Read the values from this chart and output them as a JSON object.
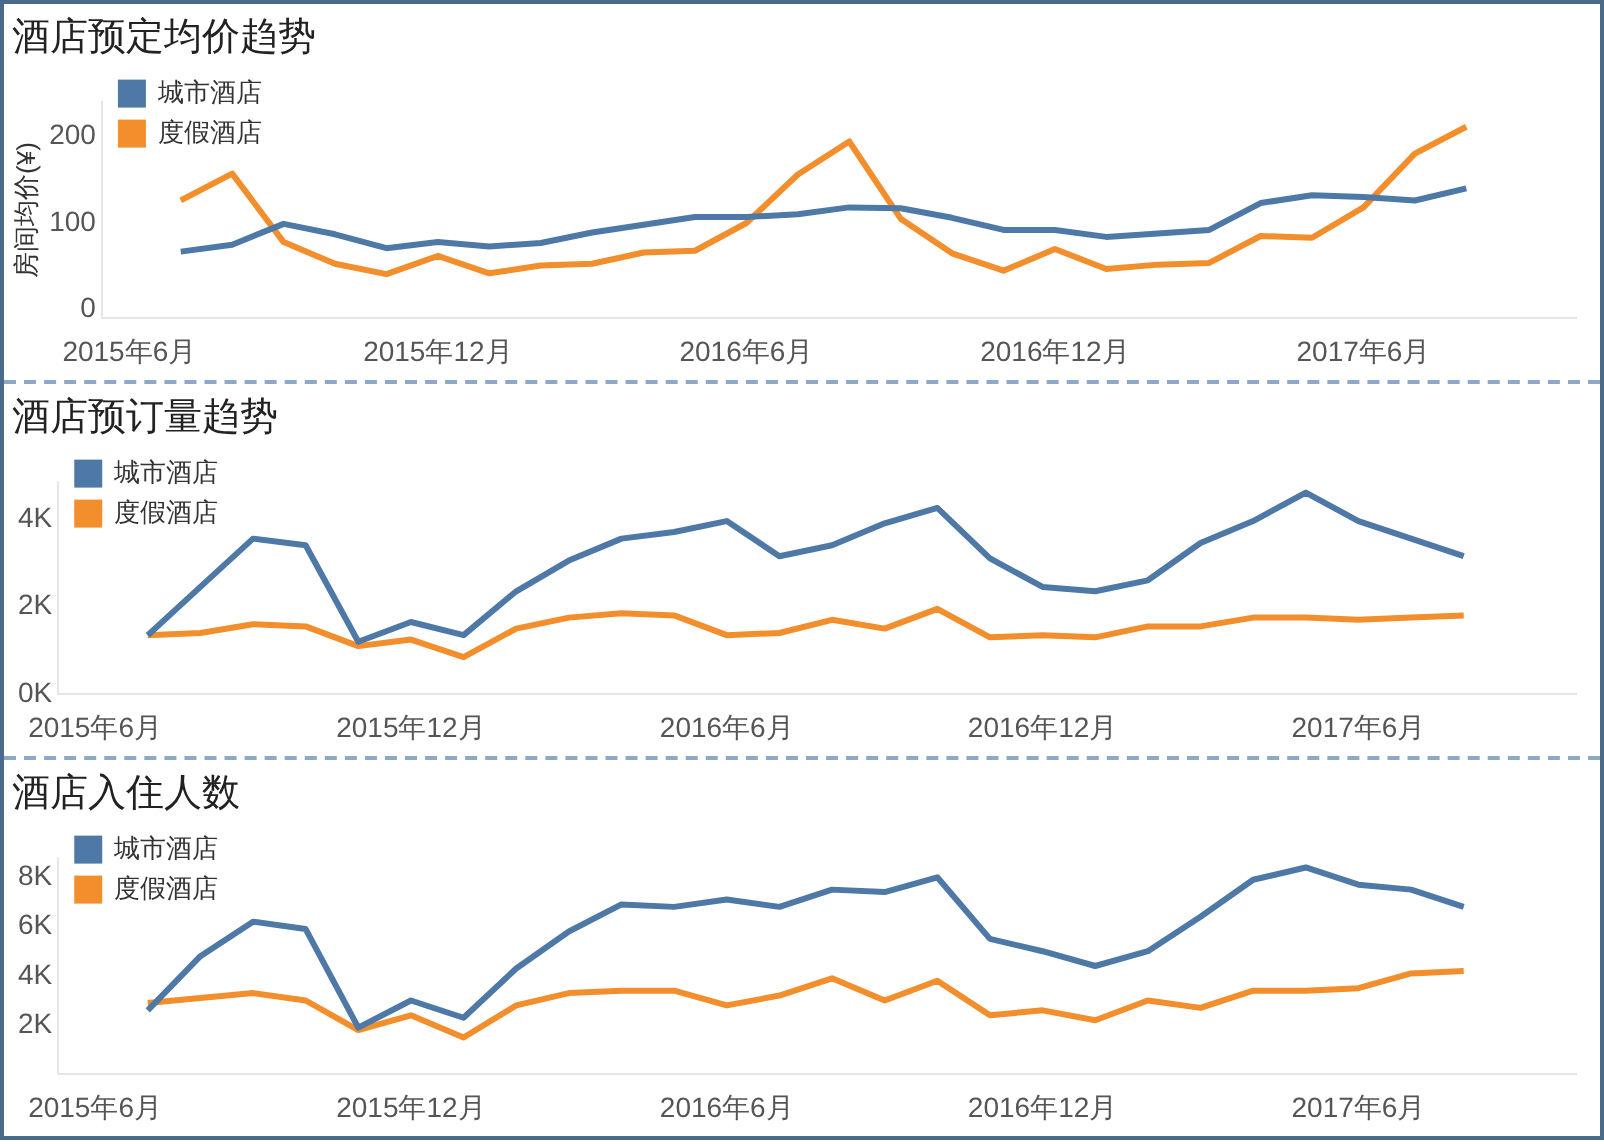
{
  "chart_data": [
    {
      "type": "line",
      "title": "酒店预定均价趋势",
      "ylabel": "房间均价(¥)",
      "x": [
        "2015-07",
        "2015-08",
        "2015-09",
        "2015-10",
        "2015-11",
        "2015-12",
        "2016-01",
        "2016-02",
        "2016-03",
        "2016-04",
        "2016-05",
        "2016-06",
        "2016-07",
        "2016-08",
        "2016-09",
        "2016-10",
        "2016-11",
        "2016-12",
        "2017-01",
        "2017-02",
        "2017-03",
        "2017-04",
        "2017-05",
        "2017-06",
        "2017-07",
        "2017-08"
      ],
      "series": [
        {
          "name": "城市酒店",
          "color": "#4e79a7",
          "values": [
            67,
            75,
            99,
            87,
            71,
            78,
            73,
            77,
            89,
            98,
            107,
            107,
            110,
            118,
            117,
            106,
            92,
            92,
            84,
            88,
            92,
            123,
            132,
            130,
            126,
            140
          ]
        },
        {
          "name": "度假酒店",
          "color": "#f28e2b",
          "values": [
            126,
            157,
            78,
            53,
            41,
            62,
            42,
            51,
            53,
            66,
            68,
            100,
            156,
            194,
            105,
            65,
            45,
            70,
            47,
            52,
            54,
            85,
            83,
            118,
            180,
            211
          ]
        }
      ],
      "xlim": [
        "2015-05-15",
        "2017-10-05"
      ],
      "xticks": [
        {
          "value": "2015-06",
          "label": "2015年6月"
        },
        {
          "value": "2015-12",
          "label": "2015年12月"
        },
        {
          "value": "2016-06",
          "label": "2016年6月"
        },
        {
          "value": "2016-12",
          "label": "2016年12月"
        },
        {
          "value": "2017-06",
          "label": "2017年6月"
        }
      ],
      "ylim": [
        -10,
        240
      ],
      "yticks": [
        0,
        100,
        200
      ],
      "grid": false,
      "legend": "top left"
    },
    {
      "type": "line",
      "title": "酒店预订量趋势",
      "x": [
        "2015-07",
        "2015-08",
        "2015-09",
        "2015-10",
        "2015-11",
        "2015-12",
        "2016-01",
        "2016-02",
        "2016-03",
        "2016-04",
        "2016-05",
        "2016-06",
        "2016-07",
        "2016-08",
        "2016-09",
        "2016-10",
        "2016-11",
        "2016-12",
        "2017-01",
        "2017-02",
        "2017-03",
        "2017-04",
        "2017-05",
        "2017-06",
        "2017-07",
        "2017-08"
      ],
      "series": [
        {
          "name": "城市酒店",
          "color": "#4e79a7",
          "values": [
            1350,
            2450,
            3550,
            3400,
            1200,
            1650,
            1350,
            2350,
            3050,
            3550,
            3700,
            3950,
            3150,
            3400,
            3900,
            4250,
            3100,
            2450,
            2350,
            2600,
            3450,
            3950,
            4600,
            3950,
            3550,
            3150
          ]
        },
        {
          "name": "度假酒店",
          "color": "#f28e2b",
          "values": [
            1350,
            1400,
            1600,
            1550,
            1100,
            1250,
            850,
            1500,
            1750,
            1850,
            1800,
            1350,
            1400,
            1700,
            1500,
            1950,
            1300,
            1350,
            1300,
            1550,
            1550,
            1750,
            1750,
            1700,
            1750,
            1800
          ]
        }
      ],
      "xlim": [
        "2015-05-10",
        "2017-10-05"
      ],
      "xticks": [
        {
          "value": "2015-06",
          "label": "2015年6月"
        },
        {
          "value": "2015-12",
          "label": "2015年12月"
        },
        {
          "value": "2016-06",
          "label": "2016年6月"
        },
        {
          "value": "2016-12",
          "label": "2016年12月"
        },
        {
          "value": "2017-06",
          "label": "2017年6月"
        }
      ],
      "ylim": [
        0,
        4850
      ],
      "yticks": [
        {
          "value": 0,
          "label": "0K"
        },
        {
          "value": 2000,
          "label": "2K"
        },
        {
          "value": 4000,
          "label": "4K"
        }
      ],
      "grid": false,
      "legend": "top left"
    },
    {
      "type": "line",
      "title": "酒店入住人数",
      "x": [
        "2015-07",
        "2015-08",
        "2015-09",
        "2015-10",
        "2015-11",
        "2015-12",
        "2016-01",
        "2016-02",
        "2016-03",
        "2016-04",
        "2016-05",
        "2016-06",
        "2016-07",
        "2016-08",
        "2016-09",
        "2016-10",
        "2016-11",
        "2016-12",
        "2017-01",
        "2017-02",
        "2017-03",
        "2017-04",
        "2017-05",
        "2017-06",
        "2017-07",
        "2017-08"
      ],
      "series": [
        {
          "name": "城市酒店",
          "color": "#4e79a7",
          "values": [
            2600,
            4800,
            6200,
            5900,
            1900,
            3000,
            2300,
            4300,
            5800,
            6900,
            6800,
            7100,
            6800,
            7500,
            7400,
            8000,
            5500,
            5000,
            4400,
            5000,
            6400,
            7900,
            8400,
            7700,
            7500,
            6800
          ]
        },
        {
          "name": "度假酒店",
          "color": "#f28e2b",
          "values": [
            2900,
            3100,
            3300,
            3000,
            1800,
            2400,
            1500,
            2800,
            3300,
            3400,
            3400,
            2800,
            3200,
            3900,
            3000,
            3800,
            2400,
            2600,
            2200,
            3000,
            2700,
            3400,
            3400,
            3500,
            4100,
            4200
          ]
        }
      ],
      "xlim": [
        "2015-05-10",
        "2017-10-05"
      ],
      "xticks": [
        {
          "value": "2015-06",
          "label": "2015年6月"
        },
        {
          "value": "2015-12",
          "label": "2015年12月"
        },
        {
          "value": "2016-06",
          "label": "2016年6月"
        },
        {
          "value": "2016-12",
          "label": "2016年12月"
        },
        {
          "value": "2017-06",
          "label": "2017年6月"
        }
      ],
      "ylim": [
        0,
        8800
      ],
      "yticks": [
        {
          "value": 2000,
          "label": "2K"
        },
        {
          "value": 4000,
          "label": "4K"
        },
        {
          "value": 6000,
          "label": "6K"
        },
        {
          "value": 8000,
          "label": "8K"
        }
      ],
      "grid": false,
      "legend": "top left"
    }
  ]
}
